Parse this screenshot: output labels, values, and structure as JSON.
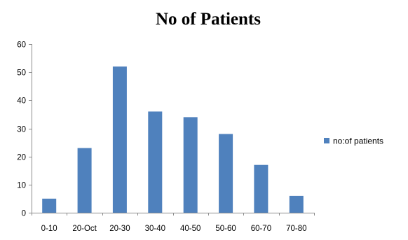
{
  "chart_data": {
    "type": "bar",
    "title": "No of Patients",
    "xlabel": "",
    "ylabel": "",
    "categories": [
      "0-10",
      "20-Oct",
      "20-30",
      "30-40",
      "40-50",
      "50-60",
      "60-70",
      "70-80"
    ],
    "series": [
      {
        "name": "no:of patients",
        "values": [
          5,
          23,
          52,
          36,
          34,
          28,
          17,
          6
        ],
        "color": "#4f81bd"
      }
    ],
    "ylim": [
      0,
      60
    ],
    "yticks": [
      0,
      10,
      20,
      30,
      40,
      50,
      60
    ],
    "grid": false,
    "legend_position": "right"
  }
}
